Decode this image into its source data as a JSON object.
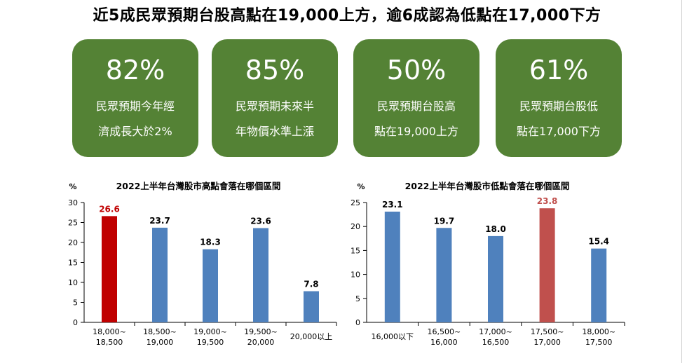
{
  "headline": "近5成民眾預期台股高點在19,000上方，逾6成認為低點在17,000下方",
  "cards": [
    {
      "value": "82%",
      "line1": "民眾預期今年經",
      "line2": "濟成長大於2%"
    },
    {
      "value": "85%",
      "line1": "民眾預期未來半",
      "line2": "年物價水準上漲"
    },
    {
      "value": "50%",
      "line1": "民眾預期台股高",
      "line2": "點在19,000上方"
    },
    {
      "value": "61%",
      "line1": "民眾預期台股低",
      "line2": "點在17,000下方"
    }
  ],
  "colors": {
    "card": "#548235",
    "bar": "#4f81bd",
    "highlight_left": "#c00000",
    "highlight_right": "#c0504d"
  },
  "chart_data": [
    {
      "type": "bar",
      "title": "2022上半年台灣股市高點會落在哪個區間",
      "unit": "%",
      "categories": [
        [
          "18,000~",
          "18,500"
        ],
        [
          "18,500~",
          "19,000"
        ],
        [
          "19,000~",
          "19,500"
        ],
        [
          "19,500~",
          "20,000"
        ],
        [
          "20,000以上"
        ]
      ],
      "values": [
        26.6,
        23.7,
        18.3,
        23.6,
        7.8
      ],
      "labels": [
        "26.6",
        "23.7",
        "18.3",
        "23.6",
        "7.8"
      ],
      "highlight": 0,
      "ylim": [
        0,
        30
      ],
      "yticks": [
        "0",
        "5",
        "10",
        "15",
        "20",
        "25",
        "30"
      ],
      "grid": false
    },
    {
      "type": "bar",
      "title": "2022上半年台灣股市低點會落在哪個區間",
      "unit": "%",
      "categories": [
        [
          "16,000以下"
        ],
        [
          "16,500~",
          "16,000"
        ],
        [
          "17,000~",
          "16,500"
        ],
        [
          "17,500~",
          "17,000"
        ],
        [
          "18,000~",
          "17,500"
        ]
      ],
      "values": [
        23.1,
        19.7,
        18.0,
        23.8,
        15.4
      ],
      "labels": [
        "23.1",
        "19.7",
        "18.0",
        "23.8",
        "15.4"
      ],
      "highlight": 3,
      "ylim": [
        0,
        25
      ],
      "yticks": [
        "0",
        "5",
        "10",
        "15",
        "20",
        "25"
      ],
      "grid": false
    }
  ]
}
